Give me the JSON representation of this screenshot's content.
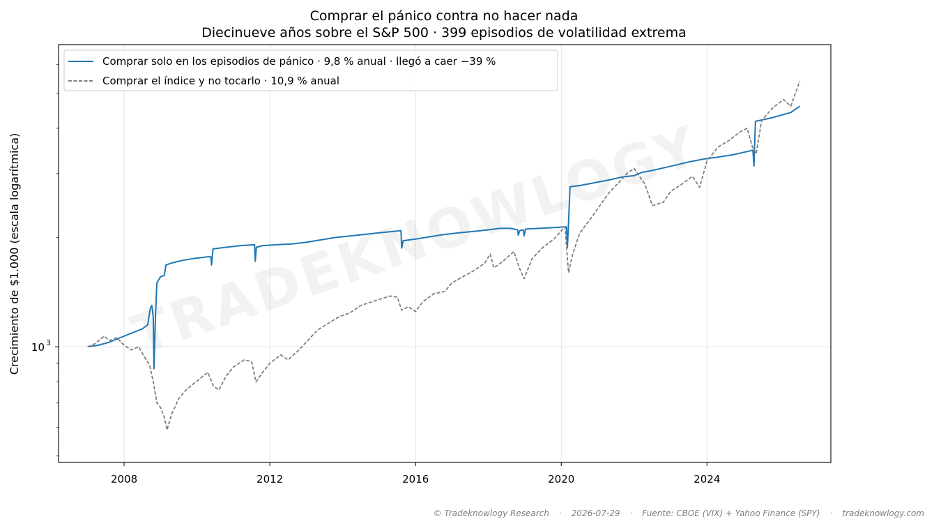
{
  "chart_data": {
    "type": "line",
    "title": "Comprar el pánico contra no hacer nada",
    "subtitle": "Diecinueve años sobre el S&P 500 · 399 episodios de volatilidad extrema",
    "xlabel": "",
    "ylabel": "Crecimiento de $1.000 (escala logarítmica)",
    "y_scale": "log",
    "xlim": [
      2006.2,
      2027.4
    ],
    "ylim": [
      480,
      6800
    ],
    "x_ticks": [
      2008,
      2012,
      2016,
      2020,
      2024
    ],
    "x_tick_labels": [
      "2008",
      "2012",
      "2016",
      "2020",
      "2024"
    ],
    "y_ticks": [
      1000
    ],
    "y_tick_base": "10",
    "y_tick_exp": "3",
    "grid": true,
    "legend_position": "upper-left",
    "watermark": "TRADEKNOWLOGY",
    "series": [
      {
        "name": "Comprar solo en los episodios de pánico · 9,8 % anual · llegó a caer −39 %",
        "color": "#1f77b4",
        "style": "solid",
        "points": [
          [
            2007.0,
            1000
          ],
          [
            2007.3,
            1010
          ],
          [
            2007.6,
            1030
          ],
          [
            2007.9,
            1060
          ],
          [
            2008.2,
            1090
          ],
          [
            2008.5,
            1120
          ],
          [
            2008.65,
            1150
          ],
          [
            2008.72,
            1280
          ],
          [
            2008.76,
            1300
          ],
          [
            2008.8,
            1210
          ],
          [
            2008.82,
            870
          ],
          [
            2008.86,
            1200
          ],
          [
            2008.9,
            1500
          ],
          [
            2009.0,
            1560
          ],
          [
            2009.1,
            1570
          ],
          [
            2009.15,
            1680
          ],
          [
            2009.3,
            1700
          ],
          [
            2009.6,
            1730
          ],
          [
            2009.9,
            1750
          ],
          [
            2010.3,
            1770
          ],
          [
            2010.38,
            1770
          ],
          [
            2010.4,
            1680
          ],
          [
            2010.44,
            1860
          ],
          [
            2010.8,
            1880
          ],
          [
            2011.2,
            1900
          ],
          [
            2011.58,
            1910
          ],
          [
            2011.6,
            1720
          ],
          [
            2011.63,
            1880
          ],
          [
            2011.8,
            1900
          ],
          [
            2012.2,
            1910
          ],
          [
            2012.6,
            1920
          ],
          [
            2013.0,
            1940
          ],
          [
            2013.4,
            1970
          ],
          [
            2013.8,
            2000
          ],
          [
            2014.2,
            2020
          ],
          [
            2014.6,
            2040
          ],
          [
            2015.0,
            2060
          ],
          [
            2015.4,
            2080
          ],
          [
            2015.6,
            2090
          ],
          [
            2015.62,
            1870
          ],
          [
            2015.66,
            1960
          ],
          [
            2016.0,
            1980
          ],
          [
            2016.4,
            2010
          ],
          [
            2016.8,
            2040
          ],
          [
            2017.2,
            2060
          ],
          [
            2017.6,
            2080
          ],
          [
            2018.0,
            2100
          ],
          [
            2018.3,
            2120
          ],
          [
            2018.6,
            2120
          ],
          [
            2018.8,
            2100
          ],
          [
            2018.82,
            2030
          ],
          [
            2018.86,
            2090
          ],
          [
            2018.96,
            2100
          ],
          [
            2018.98,
            2020
          ],
          [
            2019.02,
            2110
          ],
          [
            2019.4,
            2120
          ],
          [
            2019.8,
            2130
          ],
          [
            2020.1,
            2140
          ],
          [
            2020.14,
            2140
          ],
          [
            2020.17,
            1880
          ],
          [
            2020.2,
            2200
          ],
          [
            2020.24,
            2760
          ],
          [
            2020.5,
            2780
          ],
          [
            2020.9,
            2830
          ],
          [
            2021.3,
            2880
          ],
          [
            2021.7,
            2940
          ],
          [
            2022.0,
            2960
          ],
          [
            2022.2,
            3020
          ],
          [
            2022.5,
            3060
          ],
          [
            2022.8,
            3110
          ],
          [
            2023.1,
            3160
          ],
          [
            2023.5,
            3230
          ],
          [
            2023.9,
            3290
          ],
          [
            2024.3,
            3330
          ],
          [
            2024.7,
            3380
          ],
          [
            2025.1,
            3450
          ],
          [
            2025.26,
            3480
          ],
          [
            2025.29,
            3150
          ],
          [
            2025.33,
            4180
          ],
          [
            2025.8,
            4280
          ],
          [
            2026.3,
            4420
          ],
          [
            2026.55,
            4600
          ]
        ]
      },
      {
        "name": "Comprar el índice y no tocarlo · 10,9 % anual",
        "color": "#7f7f7f",
        "style": "dashed",
        "points": [
          [
            2007.0,
            1000
          ],
          [
            2007.2,
            1020
          ],
          [
            2007.45,
            1070
          ],
          [
            2007.6,
            1040
          ],
          [
            2007.8,
            1060
          ],
          [
            2008.0,
            1010
          ],
          [
            2008.2,
            980
          ],
          [
            2008.4,
            1000
          ],
          [
            2008.55,
            940
          ],
          [
            2008.7,
            890
          ],
          [
            2008.8,
            800
          ],
          [
            2008.9,
            700
          ],
          [
            2009.0,
            680
          ],
          [
            2009.1,
            640
          ],
          [
            2009.18,
            590
          ],
          [
            2009.3,
            650
          ],
          [
            2009.5,
            720
          ],
          [
            2009.7,
            760
          ],
          [
            2009.9,
            790
          ],
          [
            2010.1,
            820
          ],
          [
            2010.3,
            850
          ],
          [
            2010.45,
            780
          ],
          [
            2010.6,
            760
          ],
          [
            2010.8,
            830
          ],
          [
            2011.0,
            880
          ],
          [
            2011.3,
            920
          ],
          [
            2011.5,
            910
          ],
          [
            2011.62,
            800
          ],
          [
            2011.8,
            850
          ],
          [
            2012.0,
            900
          ],
          [
            2012.3,
            950
          ],
          [
            2012.5,
            920
          ],
          [
            2012.8,
            980
          ],
          [
            2013.0,
            1030
          ],
          [
            2013.3,
            1110
          ],
          [
            2013.6,
            1160
          ],
          [
            2013.9,
            1210
          ],
          [
            2014.2,
            1240
          ],
          [
            2014.5,
            1300
          ],
          [
            2014.8,
            1330
          ],
          [
            2015.0,
            1350
          ],
          [
            2015.3,
            1380
          ],
          [
            2015.5,
            1370
          ],
          [
            2015.62,
            1260
          ],
          [
            2015.8,
            1290
          ],
          [
            2016.0,
            1250
          ],
          [
            2016.2,
            1330
          ],
          [
            2016.5,
            1400
          ],
          [
            2016.8,
            1420
          ],
          [
            2017.0,
            1500
          ],
          [
            2017.3,
            1560
          ],
          [
            2017.6,
            1620
          ],
          [
            2017.9,
            1700
          ],
          [
            2018.05,
            1800
          ],
          [
            2018.15,
            1650
          ],
          [
            2018.4,
            1720
          ],
          [
            2018.7,
            1830
          ],
          [
            2018.85,
            1650
          ],
          [
            2018.98,
            1540
          ],
          [
            2019.2,
            1750
          ],
          [
            2019.5,
            1880
          ],
          [
            2019.8,
            1980
          ],
          [
            2020.1,
            2140
          ],
          [
            2020.2,
            1600
          ],
          [
            2020.3,
            1780
          ],
          [
            2020.5,
            2050
          ],
          [
            2020.8,
            2250
          ],
          [
            2021.0,
            2400
          ],
          [
            2021.3,
            2650
          ],
          [
            2021.6,
            2850
          ],
          [
            2021.8,
            3000
          ],
          [
            2022.0,
            3100
          ],
          [
            2022.3,
            2800
          ],
          [
            2022.5,
            2450
          ],
          [
            2022.8,
            2500
          ],
          [
            2023.0,
            2680
          ],
          [
            2023.3,
            2800
          ],
          [
            2023.6,
            2950
          ],
          [
            2023.8,
            2750
          ],
          [
            2024.0,
            3250
          ],
          [
            2024.3,
            3550
          ],
          [
            2024.6,
            3700
          ],
          [
            2024.9,
            3900
          ],
          [
            2025.1,
            4000
          ],
          [
            2025.25,
            3550
          ],
          [
            2025.35,
            3400
          ],
          [
            2025.5,
            4200
          ],
          [
            2025.8,
            4550
          ],
          [
            2026.1,
            4800
          ],
          [
            2026.3,
            4600
          ],
          [
            2026.55,
            5400
          ]
        ]
      }
    ]
  },
  "footer": {
    "copyright": "© Tradeknowlogy Research",
    "date": "2026-07-29",
    "source": "Fuente: CBOE (VIX) + Yahoo Finance (SPY)",
    "site": "tradeknowlogy.com"
  }
}
